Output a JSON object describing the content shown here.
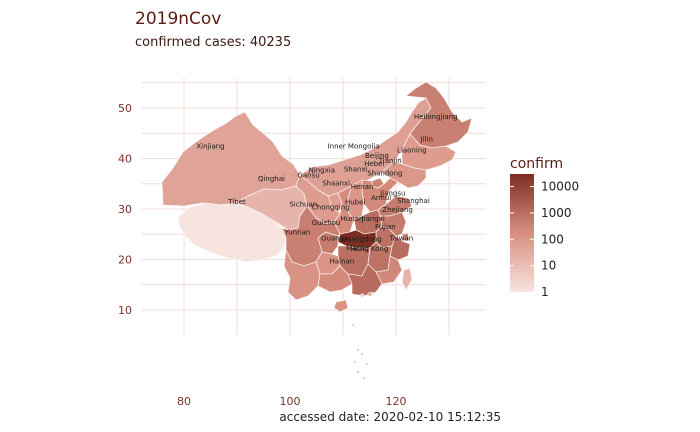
{
  "title": "2019nCov",
  "subtitle": "confirmed cases: 40235",
  "caption": "accessed date: 2020-02-10 15:12:35",
  "legend": {
    "title": "confirm",
    "ticks": [
      "10000",
      "1000",
      "100",
      "10",
      "1"
    ]
  },
  "axes": {
    "x_ticks": [
      "80",
      "100",
      "120"
    ],
    "y_ticks": [
      "50",
      "40",
      "30",
      "20",
      "10"
    ]
  },
  "colors": {
    "low": "#f7e4df",
    "high": "#7d2e23",
    "grid": "#f0dcd8",
    "text": "#5a1e12"
  },
  "chart_data": {
    "type": "choropleth",
    "title": "2019nCov",
    "subtitle": "confirmed cases: 40235",
    "caption": "accessed date: 2020-02-10 15:12:35",
    "legend_title": "confirm",
    "legend_scale": "log10",
    "legend_range": [
      1,
      30000
    ],
    "legend_position": "right",
    "xlim": [
      72,
      137
    ],
    "ylim": [
      5,
      56
    ],
    "grid": true,
    "regions": [
      {
        "name": "Heilongjiang",
        "lon": 127.5,
        "lat": 47.8,
        "value": 400
      },
      {
        "name": "Jilin",
        "lon": 125.8,
        "lat": 43.4,
        "value": 80
      },
      {
        "name": "Liaoning",
        "lon": 123.0,
        "lat": 41.2,
        "value": 100
      },
      {
        "name": "Inner Mongolia",
        "lon": 112.0,
        "lat": 42.0,
        "value": 60
      },
      {
        "name": "Xinjiang",
        "lon": 85.0,
        "lat": 42.0,
        "value": 50
      },
      {
        "name": "Qinghai",
        "lon": 96.5,
        "lat": 35.5,
        "value": 18
      },
      {
        "name": "Tibet",
        "lon": 90.0,
        "lat": 31.0,
        "value": 1
      },
      {
        "name": "Ningxia",
        "lon": 106.0,
        "lat": 37.2,
        "value": 60
      },
      {
        "name": "Gansu",
        "lon": 103.5,
        "lat": 36.2,
        "value": 80
      },
      {
        "name": "Shaanxi",
        "lon": 108.7,
        "lat": 34.7,
        "value": 200
      },
      {
        "name": "Shanxi",
        "lon": 112.4,
        "lat": 37.4,
        "value": 110
      },
      {
        "name": "Beijing",
        "lon": 116.4,
        "lat": 40.1,
        "value": 330
      },
      {
        "name": "Tianjin",
        "lon": 117.4,
        "lat": 39.5,
        "value": 90
      },
      {
        "name": "Hebei",
        "lon": 115.9,
        "lat": 38.5,
        "value": 230
      },
      {
        "name": "Shandong",
        "lon": 117.9,
        "lat": 36.6,
        "value": 440
      },
      {
        "name": "Henan",
        "lon": 113.6,
        "lat": 34.0,
        "value": 1000
      },
      {
        "name": "Sichuan",
        "lon": 102.5,
        "lat": 30.5,
        "value": 400
      },
      {
        "name": "Chongqing",
        "lon": 107.7,
        "lat": 29.9,
        "value": 460
      },
      {
        "name": "Hubei",
        "lon": 112.3,
        "lat": 30.9,
        "value": 29000
      },
      {
        "name": "Anhui",
        "lon": 117.2,
        "lat": 31.8,
        "value": 860
      },
      {
        "name": "Jiangsu",
        "lon": 119.4,
        "lat": 32.7,
        "value": 490
      },
      {
        "name": "Shanghai",
        "lon": 121.4,
        "lat": 31.2,
        "value": 290
      },
      {
        "name": "Zhejiang",
        "lon": 120.3,
        "lat": 29.4,
        "value": 1100
      },
      {
        "name": "Jiangxi",
        "lon": 115.7,
        "lat": 27.6,
        "value": 800
      },
      {
        "name": "Hunan",
        "lon": 111.7,
        "lat": 27.6,
        "value": 880
      },
      {
        "name": "Guizhou",
        "lon": 106.8,
        "lat": 26.8,
        "value": 120
      },
      {
        "name": "Yunnan",
        "lon": 101.4,
        "lat": 25.0,
        "value": 140
      },
      {
        "name": "Guangxi",
        "lon": 108.6,
        "lat": 23.8,
        "value": 220
      },
      {
        "name": "Guangdong",
        "lon": 113.5,
        "lat": 23.6,
        "value": 1150
      },
      {
        "name": "Fujian",
        "lon": 118.0,
        "lat": 26.0,
        "value": 260
      },
      {
        "name": "Taiwan",
        "lon": 121.0,
        "lat": 23.8,
        "value": 18
      },
      {
        "name": "Hong Kong",
        "lon": 114.2,
        "lat": 22.3,
        "value": 36
      },
      {
        "name": "Macau",
        "lon": 113.5,
        "lat": 22.2,
        "value": 10
      },
      {
        "name": "Hainan",
        "lon": 109.8,
        "lat": 19.2,
        "value": 140
      }
    ]
  }
}
